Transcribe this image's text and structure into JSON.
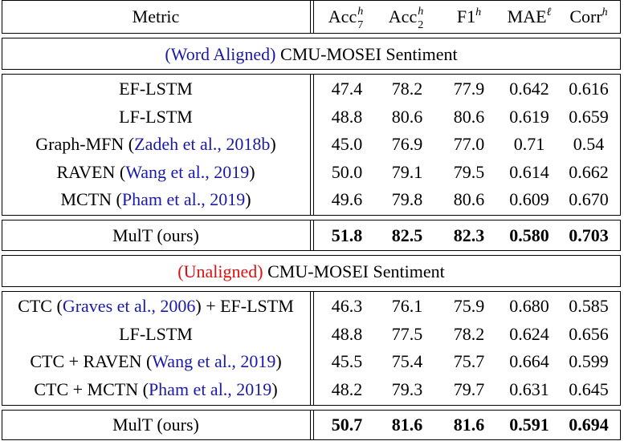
{
  "header": {
    "metric": "Metric",
    "acc7": {
      "base": "Acc",
      "sup": "h",
      "sub": "7"
    },
    "acc2": {
      "base": "Acc",
      "sup": "h",
      "sub": "2"
    },
    "f1": {
      "base": "F1",
      "sup": "h"
    },
    "mae": {
      "base": "MAE",
      "sup": "ℓ"
    },
    "corr": {
      "base": "Corr",
      "sup": "h"
    }
  },
  "section1": {
    "tag": "(Word Aligned)",
    "title": "CMU-MOSEI Sentiment"
  },
  "section2": {
    "tag": "(Unaligned)",
    "title": "CMU-MOSEI Sentiment"
  },
  "aligned_rows": [
    {
      "pre": "EF-LSTM",
      "cite": "",
      "post": "",
      "values": [
        "47.4",
        "78.2",
        "77.9",
        "0.642",
        "0.616"
      ]
    },
    {
      "pre": "LF-LSTM",
      "cite": "",
      "post": "",
      "values": [
        "48.8",
        "80.6",
        "80.6",
        "0.619",
        "0.659"
      ]
    },
    {
      "pre": "Graph-MFN (",
      "cite": "Zadeh et al., 2018b",
      "post": ")",
      "values": [
        "45.0",
        "76.9",
        "77.0",
        "0.71",
        "0.54"
      ]
    },
    {
      "pre": "RAVEN (",
      "cite": "Wang et al., 2019",
      "post": ")",
      "values": [
        "50.0",
        "79.1",
        "79.5",
        "0.614",
        "0.662"
      ]
    },
    {
      "pre": "MCTN (",
      "cite": "Pham et al., 2019",
      "post": ")",
      "values": [
        "49.6",
        "79.8",
        "80.6",
        "0.609",
        "0.670"
      ]
    }
  ],
  "aligned_ours": {
    "label": "MulT (ours)",
    "values": [
      "51.8",
      "82.5",
      "82.3",
      "0.580",
      "0.703"
    ]
  },
  "unaligned_rows": [
    {
      "pre": "CTC (",
      "cite": "Graves et al., 2006",
      "post": ") + EF-LSTM",
      "values": [
        "46.3",
        "76.1",
        "75.9",
        "0.680",
        "0.585"
      ]
    },
    {
      "pre": "LF-LSTM",
      "cite": "",
      "post": "",
      "values": [
        "48.8",
        "77.5",
        "78.2",
        "0.624",
        "0.656"
      ]
    },
    {
      "pre": "CTC + RAVEN (",
      "cite": "Wang et al., 2019",
      "post": ")",
      "values": [
        "45.5",
        "75.4",
        "75.7",
        "0.664",
        "0.599"
      ]
    },
    {
      "pre": "CTC + MCTN (",
      "cite": "Pham et al., 2019",
      "post": ")",
      "values": [
        "48.2",
        "79.3",
        "79.7",
        "0.631",
        "0.645"
      ]
    }
  ],
  "unaligned_ours": {
    "label": "MulT (ours)",
    "values": [
      "50.7",
      "81.6",
      "81.6",
      "0.591",
      "0.694"
    ]
  },
  "colors": {
    "citation": "#1a1aa6",
    "aligned_tag": "#1a1aa6",
    "unaligned_tag": "#e01010"
  }
}
